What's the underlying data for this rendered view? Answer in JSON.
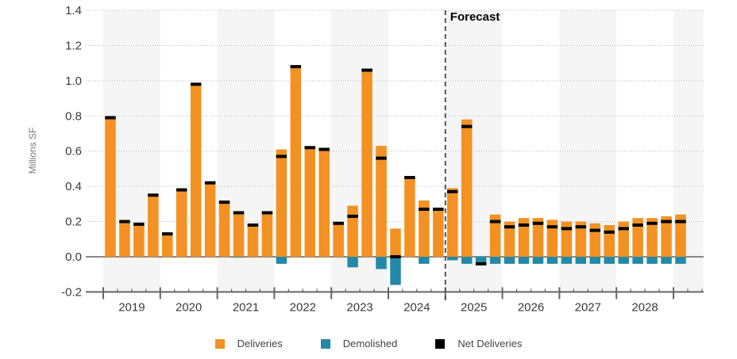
{
  "chart_data": {
    "type": "bar",
    "title": "",
    "xlabel": "",
    "ylabel": "Millions SF",
    "ylim": [
      -0.2,
      1.4
    ],
    "yticks": [
      "1.4",
      "1.2",
      "1.0",
      "0.8",
      "0.6",
      "0.4",
      "0.2",
      "0.0",
      "-0.2"
    ],
    "ytick_values": [
      1.4,
      1.2,
      1.0,
      0.8,
      0.6,
      0.4,
      0.2,
      0.0,
      -0.2
    ],
    "grid": true,
    "years": [
      "2019",
      "2020",
      "2021",
      "2022",
      "2023",
      "2024",
      "2025",
      "2026",
      "2027",
      "2028"
    ],
    "categories": [
      "2019 Q1",
      "2019 Q2",
      "2019 Q3",
      "2019 Q4",
      "2020 Q1",
      "2020 Q2",
      "2020 Q3",
      "2020 Q4",
      "2021 Q1",
      "2021 Q2",
      "2021 Q3",
      "2021 Q4",
      "2022 Q1",
      "2022 Q2",
      "2022 Q3",
      "2022 Q4",
      "2023 Q1",
      "2023 Q2",
      "2023 Q3",
      "2023 Q4",
      "2024 Q1",
      "2024 Q2",
      "2024 Q3",
      "2024 Q4",
      "2025 Q1",
      "2025 Q2",
      "2025 Q3",
      "2025 Q4",
      "2026 Q1",
      "2026 Q2",
      "2026 Q3",
      "2026 Q4",
      "2027 Q1",
      "2027 Q2",
      "2027 Q3",
      "2027 Q4",
      "2028 Q1",
      "2028 Q2",
      "2028 Q3",
      "2028 Q4",
      "2029 Q1"
    ],
    "series": [
      {
        "name": "Deliveries",
        "color": "#f39122",
        "values": [
          0.79,
          0.2,
          0.19,
          0.35,
          0.13,
          0.38,
          0.98,
          0.42,
          0.31,
          0.25,
          0.18,
          0.25,
          0.61,
          1.08,
          0.62,
          0.61,
          0.19,
          0.29,
          1.06,
          0.63,
          0.16,
          0.45,
          0.32,
          0.27,
          0.39,
          0.78,
          0.0,
          0.24,
          0.2,
          0.22,
          0.22,
          0.21,
          0.2,
          0.2,
          0.19,
          0.18,
          0.2,
          0.22,
          0.22,
          0.23,
          0.24
        ]
      },
      {
        "name": "Demolished",
        "color": "#2389a8",
        "values": [
          0,
          0,
          0,
          0,
          0,
          0,
          0,
          0,
          0,
          -0.005,
          0,
          0,
          -0.04,
          0,
          0,
          0,
          0,
          -0.06,
          0,
          -0.07,
          -0.16,
          0,
          -0.04,
          0,
          -0.02,
          -0.04,
          -0.04,
          -0.04,
          -0.04,
          -0.04,
          -0.04,
          -0.04,
          -0.04,
          -0.04,
          -0.04,
          -0.04,
          -0.04,
          -0.04,
          -0.04,
          -0.04,
          -0.04
        ]
      },
      {
        "name": "Net Deliveries",
        "color": "#000000",
        "values": [
          0.79,
          0.2,
          0.185,
          0.35,
          0.13,
          0.38,
          0.98,
          0.42,
          0.31,
          0.25,
          0.18,
          0.25,
          0.57,
          1.08,
          0.62,
          0.61,
          0.19,
          0.23,
          1.06,
          0.56,
          0.0,
          0.45,
          0.27,
          0.27,
          0.37,
          0.74,
          -0.04,
          0.2,
          0.17,
          0.18,
          0.19,
          0.17,
          0.16,
          0.17,
          0.15,
          0.14,
          0.16,
          0.18,
          0.19,
          0.2,
          0.2
        ]
      }
    ],
    "forecast_start": "2025 Q1",
    "annotations": [
      "Forecast"
    ],
    "legend_position": "bottom"
  },
  "legend": [
    {
      "label": "Deliveries",
      "color": "#f39122"
    },
    {
      "label": "Demolished",
      "color": "#2389a8"
    },
    {
      "label": "Net Deliveries",
      "color": "#000000"
    }
  ]
}
